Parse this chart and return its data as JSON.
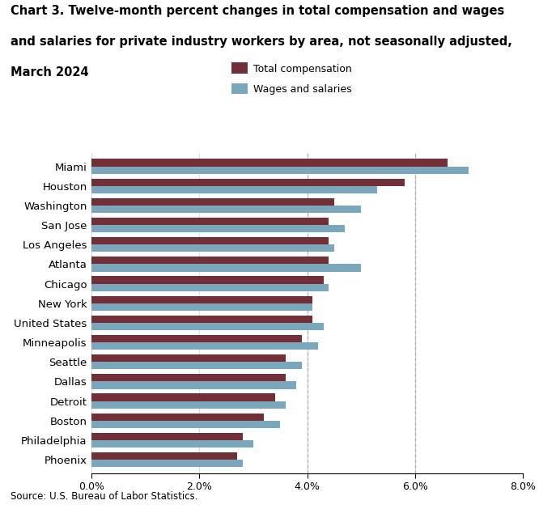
{
  "title_line1": "Chart 3. Twelve-month percent changes in total compensation and wages",
  "title_line2": "and salaries for private industry workers by area, not seasonally adjusted,",
  "title_line3": "March 2024",
  "categories": [
    "Miami",
    "Houston",
    "Washington",
    "San Jose",
    "Los Angeles",
    "Atlanta",
    "Chicago",
    "New York",
    "United States",
    "Minneapolis",
    "Seattle",
    "Dallas",
    "Detroit",
    "Boston",
    "Philadelphia",
    "Phoenix"
  ],
  "total_compensation": [
    6.6,
    5.8,
    4.5,
    4.4,
    4.4,
    4.4,
    4.3,
    4.1,
    4.1,
    3.9,
    3.6,
    3.6,
    3.4,
    3.2,
    2.8,
    2.7
  ],
  "wages_and_salaries": [
    7.0,
    5.3,
    5.0,
    4.7,
    4.5,
    5.0,
    4.4,
    4.1,
    4.3,
    4.2,
    3.9,
    3.8,
    3.6,
    3.5,
    3.0,
    2.8
  ],
  "color_compensation": "#722F37",
  "color_wages": "#7BA7BC",
  "xlim": [
    0,
    0.08
  ],
  "xticks": [
    0.0,
    0.02,
    0.04,
    0.06,
    0.08
  ],
  "xticklabels": [
    "0.0%",
    "2.0%",
    "4.0%",
    "6.0%",
    "8.0%"
  ],
  "dashed_lines": [
    0.04,
    0.06
  ],
  "legend_labels": [
    "Total compensation",
    "Wages and salaries"
  ],
  "source": "Source: U.S. Bureau of Labor Statistics.",
  "bar_height": 0.38,
  "figsize": [
    6.66,
    6.29
  ],
  "dpi": 100
}
